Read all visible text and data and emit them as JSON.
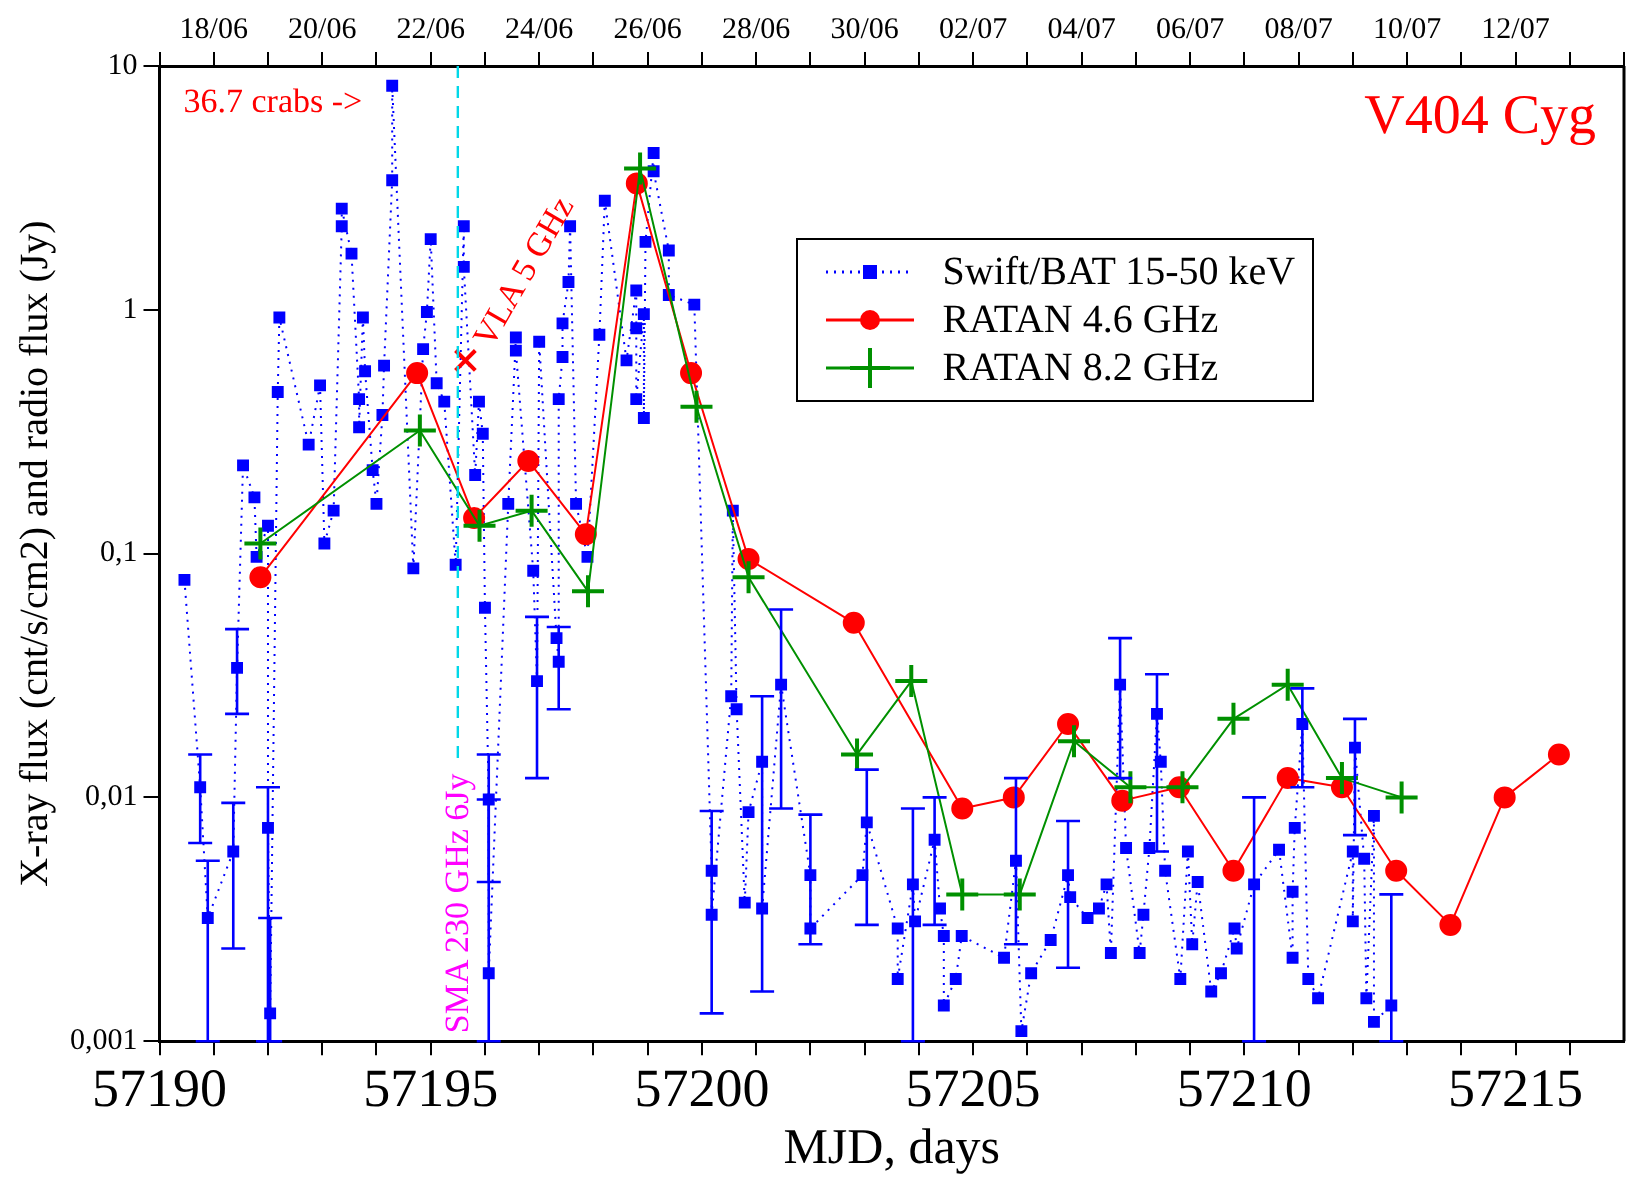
{
  "chart_data": {
    "type": "line",
    "title": "V404 Cyg",
    "xlabel": "MJD, days",
    "ylabel": "X-ray flux (cnt/s/cm2) and radio flux (Jy)",
    "xlim": [
      57190,
      57217
    ],
    "xticks": [
      57190,
      {
        "value": 57191,
        "label": null
      },
      {
        "value": 57192,
        "label": null
      },
      {
        "value": 57193,
        "label": null
      },
      {
        "value": 57194,
        "label": null
      },
      57195,
      {
        "value": 57196,
        "label": null
      },
      {
        "value": 57197,
        "label": null
      },
      {
        "value": 57198,
        "label": null
      },
      {
        "value": 57199,
        "label": null
      },
      57200,
      {
        "value": 57201,
        "label": null
      },
      {
        "value": 57202,
        "label": null
      },
      {
        "value": 57203,
        "label": null
      },
      {
        "value": 57204,
        "label": null
      },
      57205,
      {
        "value": 57206,
        "label": null
      },
      {
        "value": 57207,
        "label": null
      },
      {
        "value": 57208,
        "label": null
      },
      {
        "value": 57209,
        "label": null
      },
      57210,
      {
        "value": 57211,
        "label": null
      },
      {
        "value": 57212,
        "label": null
      },
      {
        "value": 57213,
        "label": null
      },
      {
        "value": 57214,
        "label": null
      },
      57215,
      {
        "value": 57216,
        "label": null
      }
    ],
    "x2lim": [
      "--06-17",
      "--07-14"
    ],
    "x2ticks": [
      {
        "value": "--06-17",
        "label": null
      },
      {
        "value": "--06-18",
        "label": "18/06"
      },
      {
        "value": "--06-19",
        "label": null
      },
      {
        "value": "--06-20",
        "label": "20/06"
      },
      {
        "value": "--06-21",
        "label": null
      },
      {
        "value": "--06-22",
        "label": "22/06"
      },
      {
        "value": "--06-23",
        "label": null
      },
      {
        "value": "--06-24",
        "label": "24/06"
      },
      {
        "value": "--06-25",
        "label": null
      },
      {
        "value": "--06-26",
        "label": "26/06"
      },
      {
        "value": "--06-27",
        "label": null
      },
      {
        "value": "--06-28",
        "label": "28/06"
      },
      {
        "value": "--06-29",
        "label": null
      },
      {
        "value": "--06-30",
        "label": "30/06"
      },
      {
        "value": "--07-01",
        "label": null
      },
      {
        "value": "--07-02",
        "label": "02/07"
      },
      {
        "value": "--07-03",
        "label": null
      },
      {
        "value": "--07-04",
        "label": "04/07"
      },
      {
        "value": "--07-05",
        "label": null
      },
      {
        "value": "--07-06",
        "label": "06/07"
      },
      {
        "value": "--07-07",
        "label": null
      },
      {
        "value": "--07-08",
        "label": "08/07"
      },
      {
        "value": "--07-09",
        "label": null
      },
      {
        "value": "--07-10",
        "label": "10/07"
      },
      {
        "value": "--07-11",
        "label": null
      },
      {
        "value": "--07-12",
        "label": "12/07"
      },
      {
        "value": "--07-13",
        "label": null
      },
      {
        "value": "--07-14",
        "label": null
      }
    ],
    "log": "y",
    "ylim": [
      0.001,
      10
    ],
    "yticks": [
      {
        "value": 0.001,
        "label": "0,001"
      },
      {
        "value": 0.01,
        "label": "0,01"
      },
      {
        "value": 0.1,
        "label": "0,1"
      },
      1,
      10
    ],
    "grid": false,
    "legend": "top right",
    "series": [
      {
        "name": "Swift/BAT 15-50 keV",
        "color": "#0000ff",
        "marker": "square",
        "line_style": "dotted",
        "x": [
          57190.46,
          57190.75,
          57190.89,
          57191.36,
          57191.43,
          57191.54,
          57191.75,
          57191.79,
          57192.0,
          57192.0,
          57192.04,
          57192.18,
          57192.21,
          57192.75,
          57192.96,
          57193.04,
          57193.21,
          57193.36,
          57193.36,
          57193.54,
          57193.68,
          57193.68,
          57193.75,
          57193.79,
          57193.93,
          57194.0,
          57194.11,
          57194.14,
          57194.29,
          57194.29,
          57194.68,
          57194.86,
          57194.93,
          57195.0,
          57195.11,
          57195.25,
          57195.46,
          57195.61,
          57195.61,
          57195.82,
          57195.89,
          57195.96,
          57196.0,
          57196.07,
          57196.07,
          57196.43,
          57196.57,
          57196.57,
          57196.89,
          57196.96,
          57197.0,
          57197.32,
          57197.36,
          57197.36,
          57197.43,
          57197.43,
          57197.54,
          57197.57,
          57197.68,
          57197.89,
          57198.11,
          57198.21,
          57198.61,
          57198.79,
          57198.79,
          57198.79,
          57198.93,
          57198.93,
          57198.96,
          57199.11,
          57199.11,
          57199.39,
          57199.39,
          57199.86,
          57200.18,
          57200.18,
          57200.54,
          57200.57,
          57200.64,
          57200.79,
          57200.86,
          57201.11,
          57201.11,
          57201.46,
          57202.0,
          57202.0,
          57202.96,
          57203.04,
          57203.61,
          57203.61,
          57203.89,
          57203.93,
          57204.29,
          57204.39,
          57204.46,
          57204.46,
          57204.68,
          57204.79,
          57205.57,
          57205.79,
          57205.89,
          57206.07,
          57206.43,
          57206.75,
          57206.79,
          57207.11,
          57207.32,
          57207.46,
          57207.54,
          57207.71,
          57207.82,
          57208.07,
          57208.14,
          57208.25,
          57208.39,
          57208.46,
          57208.54,
          57208.82,
          57208.96,
          57209.04,
          57209.14,
          57209.39,
          57209.57,
          57209.82,
          57209.86,
          57210.18,
          57210.64,
          57210.89,
          57210.89,
          57210.93,
          57211.07,
          57211.18,
          57211.36,
          57212.0,
          57212.0,
          57212.04,
          57212.21,
          57212.25,
          57212.39,
          57212.39,
          57212.71
        ],
        "values": [
          0.078,
          0.011,
          0.0032,
          0.006,
          0.034,
          0.23,
          0.17,
          0.097,
          0.13,
          0.0075,
          0.0013,
          0.46,
          0.93,
          0.28,
          0.49,
          0.11,
          0.15,
          2.2,
          2.6,
          1.7,
          0.43,
          0.33,
          0.93,
          0.56,
          0.22,
          0.16,
          0.37,
          0.59,
          3.4,
          8.3,
          0.087,
          0.69,
          0.98,
          1.95,
          0.5,
          0.42,
          0.09,
          2.2,
          1.5,
          0.21,
          0.42,
          0.31,
          0.06,
          0.0098,
          0.0019,
          0.16,
          0.77,
          0.68,
          0.085,
          0.03,
          0.74,
          0.045,
          0.036,
          0.43,
          0.64,
          0.88,
          1.3,
          2.2,
          0.16,
          0.097,
          0.79,
          2.8,
          0.62,
          1.2,
          0.84,
          0.43,
          0.96,
          0.36,
          1.9,
          4.4,
          3.7,
          1.75,
          1.15,
          1.05,
          0.005,
          0.0033,
          0.026,
          0.15,
          0.023,
          0.0037,
          0.0087,
          0.014,
          0.0035,
          0.029,
          0.0048,
          0.0029,
          0.0048,
          0.0079,
          0.0029,
          0.0018,
          0.0044,
          0.0031,
          0.0067,
          0.0035,
          0.0027,
          0.0014,
          0.0018,
          0.0027,
          0.0022,
          0.0055,
          0.0011,
          0.0019,
          0.0026,
          0.0048,
          0.0039,
          0.0032,
          0.0035,
          0.0044,
          0.0023,
          0.029,
          0.0062,
          0.0023,
          0.0033,
          0.0062,
          0.022,
          0.014,
          0.005,
          0.0018,
          0.006,
          0.0025,
          0.0045,
          0.0016,
          0.0019,
          0.0029,
          0.0024,
          0.0044,
          0.0061,
          0.0022,
          0.0041,
          0.0075,
          0.02,
          0.0018,
          0.0015,
          0.006,
          0.0031,
          0.016,
          0.0056,
          0.0015,
          0.0084,
          0.0012,
          0.0014
        ],
        "errors": [
          null,
          [
            0.0065,
            0.015
          ],
          [
            0.001,
            0.0055
          ],
          [
            0.0024,
            0.0095
          ],
          [
            0.022,
            0.049
          ],
          null,
          null,
          null,
          null,
          [
            0.001,
            0.011
          ],
          [
            0.001,
            0.0032
          ],
          null,
          null,
          null,
          null,
          null,
          null,
          null,
          null,
          null,
          null,
          null,
          null,
          null,
          null,
          null,
          null,
          null,
          null,
          null,
          null,
          null,
          null,
          null,
          null,
          null,
          null,
          null,
          null,
          null,
          null,
          null,
          null,
          [
            0.0045,
            0.015
          ],
          [
            0.001,
            0.0098
          ],
          null,
          null,
          null,
          null,
          [
            0.012,
            0.055
          ],
          null,
          null,
          [
            0.023,
            0.05
          ],
          null,
          null,
          null,
          null,
          null,
          null,
          null,
          null,
          null,
          null,
          null,
          null,
          null,
          null,
          null,
          null,
          null,
          null,
          null,
          null,
          null,
          [
            0.0013,
            0.0088
          ],
          null,
          null,
          null,
          null,
          null,
          null,
          [
            0.0016,
            0.026
          ],
          null,
          [
            0.009,
            0.059
          ],
          [
            0.0025,
            0.0085
          ],
          null,
          null,
          [
            0.003,
            0.013
          ],
          null,
          null,
          [
            0.001,
            0.009
          ],
          null,
          [
            0.003,
            0.01
          ],
          null,
          null,
          null,
          null,
          null,
          null,
          [
            0.0025,
            0.012
          ],
          null,
          null,
          null,
          [
            0.002,
            0.008
          ],
          null,
          null,
          null,
          null,
          null,
          [
            0.012,
            0.045
          ],
          null,
          null,
          null,
          null,
          [
            0.006,
            0.032
          ],
          null,
          null,
          null,
          null,
          null,
          null,
          null,
          null,
          null,
          null,
          [
            0.001,
            0.01
          ],
          null,
          null,
          null,
          null,
          [
            0.011,
            0.028
          ],
          null,
          null,
          null,
          null,
          [
            0.007,
            0.021
          ],
          null,
          null,
          null,
          null,
          [
            0.001,
            0.004
          ]
        ]
      },
      {
        "name": "RATAN 4.6 GHz",
        "color": "#ff0000",
        "marker": "circle",
        "line_style": "solid",
        "x": [
          57191.86,
          57194.75,
          57195.8,
          57196.8,
          57197.86,
          57198.8,
          57199.8,
          57200.86,
          57202.8,
          57204.8,
          57205.75,
          57206.75,
          57207.75,
          57208.8,
          57209.8,
          57210.8,
          57211.8,
          57212.8,
          57213.8,
          57214.8,
          57215.8
        ],
        "values": [
          0.08,
          0.55,
          0.14,
          0.24,
          0.12,
          3.3,
          0.55,
          0.095,
          0.052,
          0.009,
          0.01,
          0.02,
          0.0097,
          0.011,
          0.005,
          0.012,
          0.011,
          0.005,
          0.003,
          0.01,
          0.015
        ]
      },
      {
        "name": "RATAN 8.2 GHz",
        "color": "#009000",
        "marker": "cross",
        "line_style": "solid",
        "x": [
          57191.86,
          57194.8,
          57195.9,
          57196.86,
          57197.9,
          57198.86,
          57199.9,
          57200.86,
          57202.86,
          57203.86,
          57204.8,
          57205.86,
          57206.86,
          57207.9,
          57208.86,
          57209.8,
          57210.8,
          57211.8,
          57212.9
        ],
        "values": [
          0.11,
          0.32,
          0.13,
          0.15,
          0.07,
          3.8,
          0.4,
          0.08,
          0.015,
          0.03,
          0.004,
          0.004,
          0.017,
          0.011,
          0.011,
          0.021,
          0.029,
          0.012,
          0.01
        ]
      },
      {
        "color": "#ff0000",
        "marker": "x",
        "x": [
          57195.64
        ],
        "values": [
          0.62
        ]
      }
    ],
    "ref_lines": [
      {
        "axis": "x",
        "value": 57195.5,
        "label": "SMA 230 GHz 6Jy",
        "color": "#00d8e8",
        "line_style": "dashed"
      }
    ],
    "annotations": [
      "36.7 crabs ->",
      {
        "text": "VLA 5 GHz",
        "x": 57195.64,
        "y": 0.62
      }
    ]
  }
}
